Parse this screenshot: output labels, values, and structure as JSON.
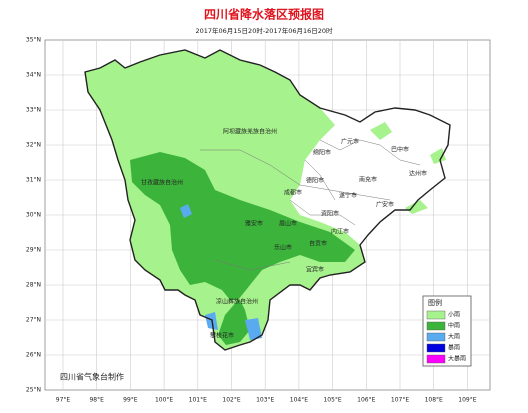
{
  "header": {
    "title": "四川省降水落区预报图",
    "subtitle": "2017年06月15日20时-2017年06月16日20时"
  },
  "map": {
    "lat_labels": [
      "35°N",
      "34°N",
      "33°N",
      "32°N",
      "31°N",
      "30°N",
      "29°N",
      "28°N",
      "27°N",
      "26°N",
      "25°N"
    ],
    "lon_labels": [
      "97°E",
      "98°E",
      "99°E",
      "100°E",
      "101°E",
      "102°E",
      "103°E",
      "104°E",
      "105°E",
      "106°E",
      "107°E",
      "108°E",
      "109°E"
    ],
    "regions": [
      "阿坝藏族羌族自治州",
      "广元市",
      "巴中市",
      "绵阳市",
      "甘孜藏族自治州",
      "德阳市",
      "南充市",
      "达州市",
      "成都市",
      "遂宁市",
      "广安市",
      "雅安市",
      "眉山市",
      "资阳市",
      "内江市",
      "乐山市",
      "自贡市",
      "宜宾市",
      "凉山彝族自治州",
      "攀枝花市"
    ]
  },
  "legend": {
    "title": "图例",
    "items": [
      "小雨",
      "中雨",
      "大雨",
      "暴雨",
      "大暴雨"
    ]
  },
  "credit": "四川省气象台制作"
}
